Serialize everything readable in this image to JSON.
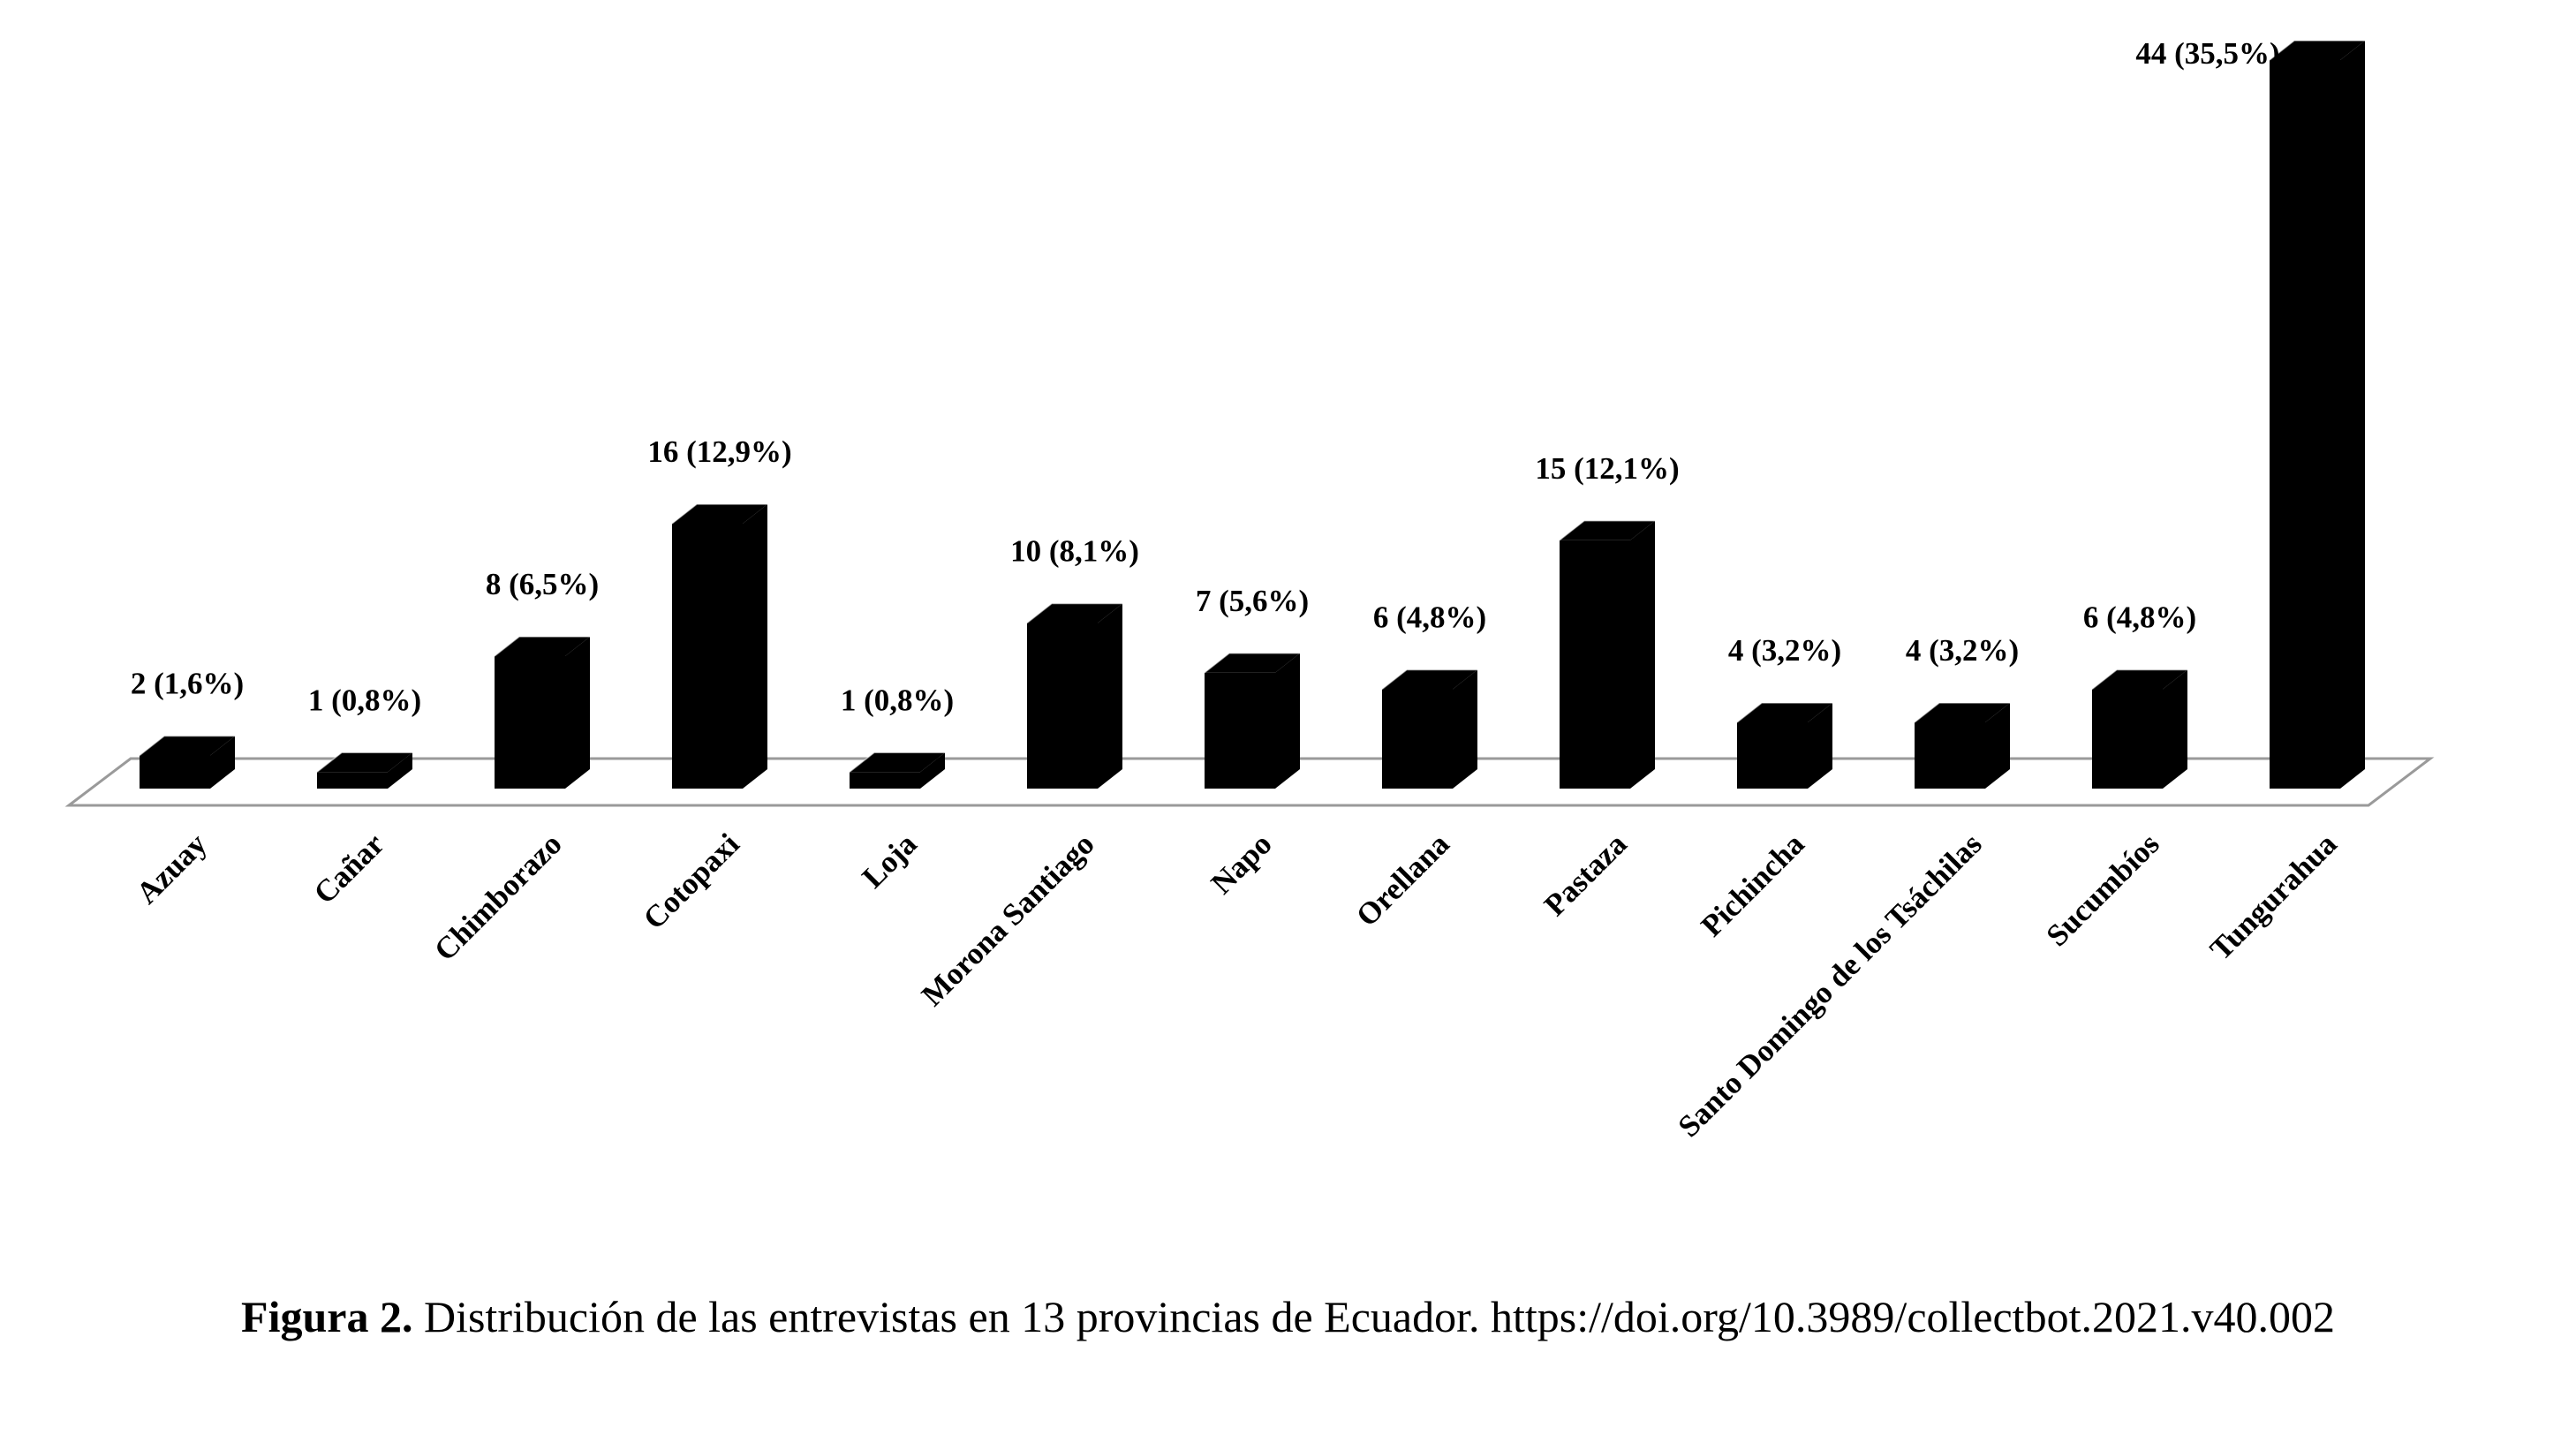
{
  "chart_data": {
    "type": "bar",
    "categories": [
      "Azuay",
      "Cañar",
      "Chimborazo",
      "Cotopaxi",
      "Loja",
      "Morona Santiago",
      "Napo",
      "Orellana",
      "Pastaza",
      "Pichincha",
      "Santo Domingo de los Tsáchilas",
      "Sucumbíos",
      "Tungurahua"
    ],
    "values": [
      2,
      1,
      8,
      16,
      1,
      10,
      7,
      6,
      15,
      4,
      4,
      6,
      44
    ],
    "data_labels": [
      "2 (1,6%)",
      "1 (0,8%)",
      "8 (6,5%)",
      "16 (12,9%)",
      "1 (0,8%)",
      "10 (8,1%)",
      "7 (5,6%)",
      "6 (4,8%)",
      "15 (12,1%)",
      "4  (3,2%)",
      "4 (3,2%)",
      "6 (4,8%)",
      "44 (35,5%)"
    ],
    "ylim": [
      0,
      44
    ],
    "grid": false,
    "legend": "none",
    "bar_color": "#000000"
  },
  "caption": {
    "figure_label": "Figura 2.",
    "text": " Distribución de las entrevistas en 13 provincias de Ecuador. https://doi.org/10.3989/collectbot.2021.v40.002"
  }
}
